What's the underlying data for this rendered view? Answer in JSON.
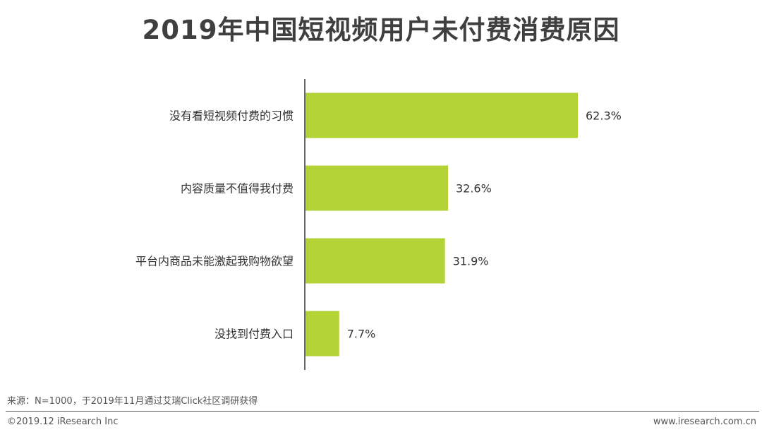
{
  "chart_data": {
    "type": "bar",
    "orientation": "horizontal",
    "title": "2019年中国短视频用户未付费消费原因",
    "categories": [
      "没有看短视频付费的习惯",
      "内容质量不值得我付费",
      "平台内商品未能激起我购物欲望",
      "没找到付费入口"
    ],
    "values": [
      62.3,
      32.6,
      31.9,
      7.7
    ],
    "value_labels": [
      "62.3%",
      "32.6%",
      "31.9%",
      "7.7%"
    ],
    "unit": "%",
    "xlim": [
      0,
      70
    ],
    "bar_color": "#b2d235",
    "grid": false,
    "legend": "none"
  },
  "footer": {
    "source": "来源：N=1000，于2019年11月通过艾瑞Click社区调研获得",
    "copyright": "©2019.12 iResearch Inc",
    "website": "www.iresearch.com.cn"
  }
}
